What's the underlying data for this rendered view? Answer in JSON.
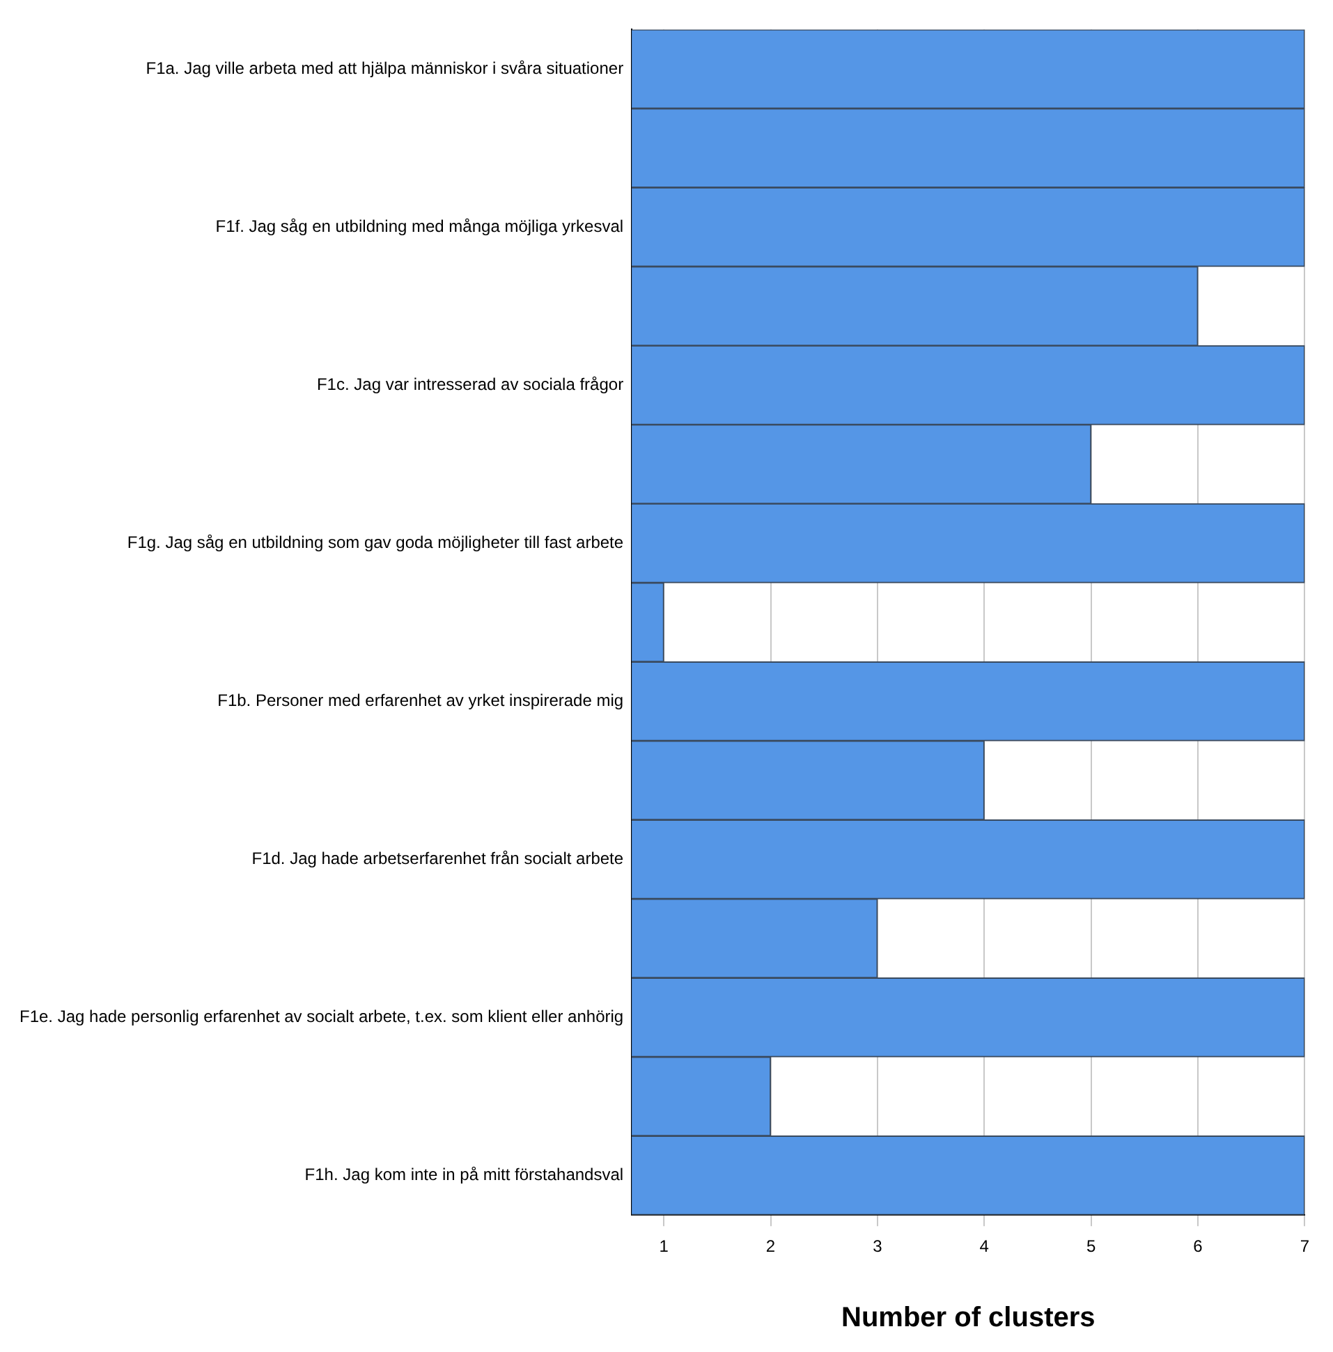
{
  "chart_data": {
    "type": "bar",
    "orientation": "horizontal",
    "xlabel": "Number of clusters",
    "categories": [
      "F1a. Jag ville arbeta med att hjälpa människor i svåra situationer",
      null,
      "F1f. Jag såg en utbildning med många möjliga yrkesval",
      null,
      "F1c. Jag var intresserad av sociala frågor",
      null,
      "F1g. Jag såg en utbildning som gav goda möjligheter till fast arbete",
      null,
      "F1b. Personer med erfarenhet av yrket inspirerade mig",
      null,
      "F1d. Jag hade arbetserfarenhet från socialt arbete",
      null,
      "F1e. Jag hade personlig erfarenhet av socialt arbete, t.ex. som klient eller anhörig",
      null,
      "F1h. Jag kom inte in på mitt förstahandsval"
    ],
    "values": [
      7,
      7,
      7,
      6,
      7,
      5,
      7,
      1,
      7,
      4,
      7,
      3,
      7,
      2,
      7
    ],
    "color": "#5596e6",
    "xlim": [
      0.7,
      7
    ],
    "xticks": [
      1,
      2,
      3,
      4,
      5,
      6,
      7
    ],
    "grid": "x",
    "legend": false
  }
}
